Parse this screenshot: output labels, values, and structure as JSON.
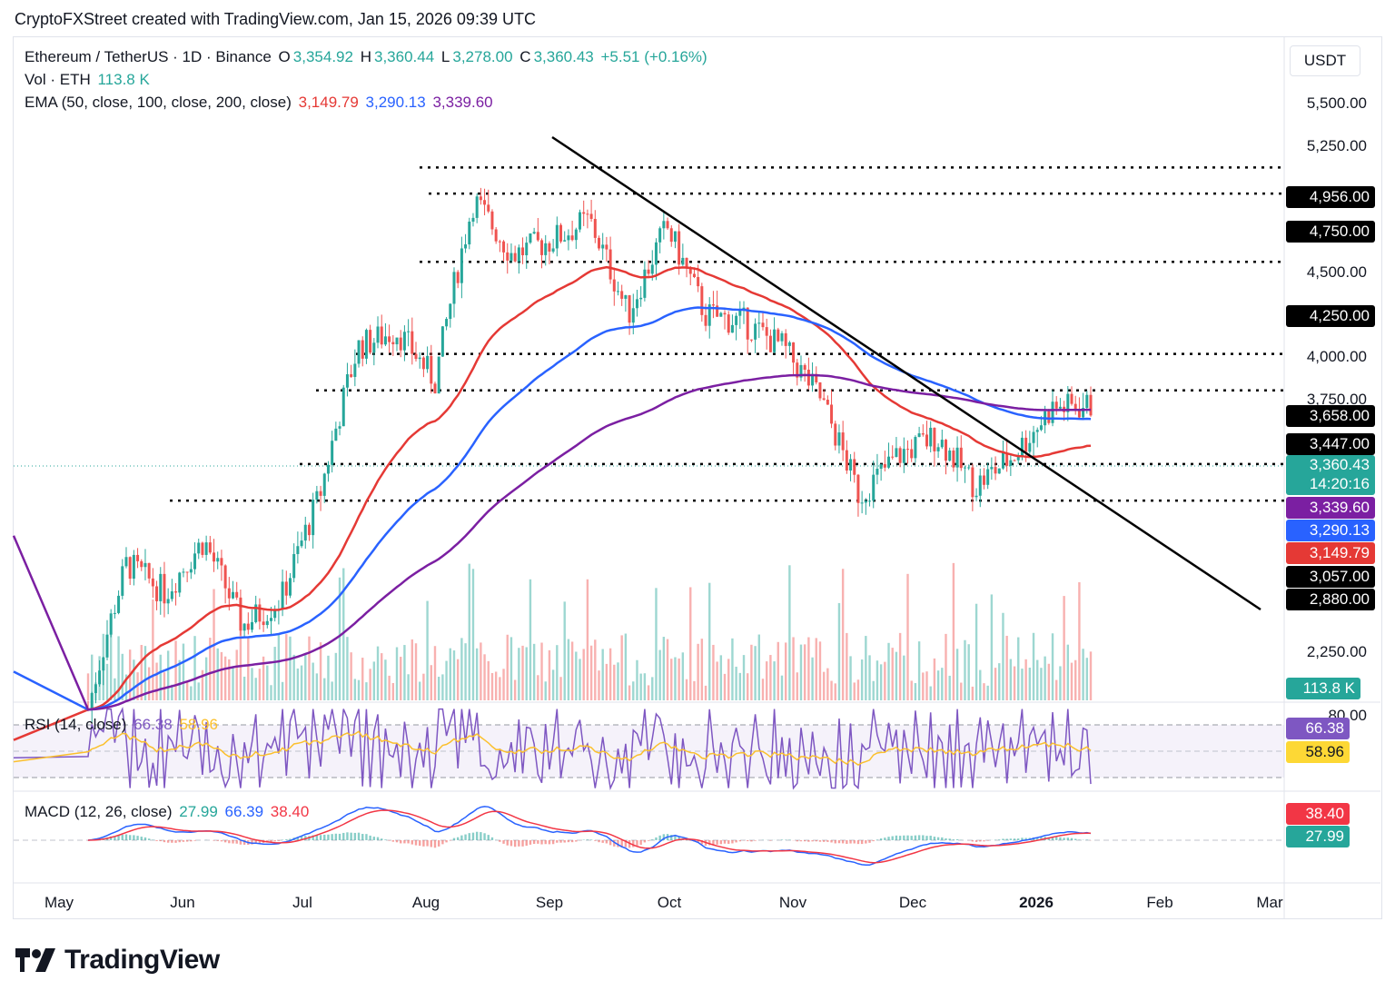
{
  "header": "CryptoFXStreet created with TradingView.com, Jan 15, 2026 09:39 UTC",
  "currency": "USDT",
  "legend": {
    "symbol": "Ethereum / TetherUS · 1D · Binance",
    "o_label": "O",
    "o": "3,354.92",
    "h_label": "H",
    "h": "3,360.44",
    "l_label": "L",
    "l": "3,278.00",
    "c_label": "C",
    "c": "3,360.43",
    "change": "+5.51 (+0.16%)",
    "vol_label": "Vol · ETH",
    "vol": "113.8 K",
    "ema_label": "EMA (50, close, 100, close, 200, close)",
    "ema50": "3,149.79",
    "ema100": "3,290.13",
    "ema200": "3,339.60",
    "rsi_label": "RSI (14, close)",
    "rsi": "66.38",
    "rsi_ma": "58.96",
    "macd_label": "MACD (12, 26, close)",
    "macd_hist": "27.99",
    "macd": "66.39",
    "macd_signal": "38.40"
  },
  "colors": {
    "up": "#26a69a",
    "down": "#ef5350",
    "ema50": "#e53935",
    "ema100": "#2962ff",
    "ema200": "#7b1fa2",
    "rsi": "#7e57c2",
    "rsi_ma": "#fbc02d",
    "macd": "#2962ff",
    "signal": "#f23645"
  },
  "price_axis": [
    "5,500.00",
    "5,250.00",
    "4,500.00",
    "4,000.00",
    "3,750.00",
    "2,250.00"
  ],
  "price_labels": {
    "last": "3,360.43",
    "countdown": "14:20:16",
    "ema200": "3,339.60",
    "ema100": "3,290.13",
    "ema50": "3,149.79",
    "vol": "113.8 K",
    "rsi": "66.38",
    "rsi_ma": "58.96",
    "macd_signal": "38.40",
    "macd_hist": "27.99"
  },
  "levels": [
    "4,956.00",
    "4,750.00",
    "4,250.00",
    "3,658.00",
    "3,447.00",
    "3,057.00",
    "2,880.00"
  ],
  "rsi_axis": [
    "80.00"
  ],
  "months": [
    "May",
    "Jun",
    "Jul",
    "Aug",
    "Sep",
    "Oct",
    "Nov",
    "Dec",
    "2026",
    "Feb",
    "Mar"
  ],
  "logo": "TradingView",
  "chart_data": {
    "type": "candlestick",
    "title": "Ethereum / TetherUS · 1D · Binance",
    "x_range": [
      "May",
      "Mar"
    ],
    "ylim": [
      2000,
      5700
    ],
    "y_scale": "log",
    "last_close": 3360.43,
    "horizontal_levels": [
      4956,
      4750,
      4250,
      3658,
      3447,
      3057,
      2880
    ],
    "trendline": {
      "from": [
        "Aug",
        5260
      ],
      "to": [
        "Mar",
        2720
      ]
    },
    "close_path": [
      {
        "x": "May",
        "y": 2050
      },
      {
        "x": "May",
        "y": 2600
      },
      {
        "x": "Jun",
        "y": 2480
      },
      {
        "x": "Jun",
        "y": 2700
      },
      {
        "x": "Jun",
        "y": 2350
      },
      {
        "x": "Jul",
        "y": 2450
      },
      {
        "x": "Jul",
        "y": 2900
      },
      {
        "x": "Jul",
        "y": 3700
      },
      {
        "x": "Aug",
        "y": 3800
      },
      {
        "x": "Aug",
        "y": 3500
      },
      {
        "x": "Aug",
        "y": 4700
      },
      {
        "x": "Sep",
        "y": 4300
      },
      {
        "x": "Sep",
        "y": 4400
      },
      {
        "x": "Sep",
        "y": 4550
      },
      {
        "x": "Sep",
        "y": 3900
      },
      {
        "x": "Oct",
        "y": 4500
      },
      {
        "x": "Oct",
        "y": 3900
      },
      {
        "x": "Oct",
        "y": 3850
      },
      {
        "x": "Nov",
        "y": 3700
      },
      {
        "x": "Nov",
        "y": 3400
      },
      {
        "x": "Nov",
        "y": 2900
      },
      {
        "x": "Dec",
        "y": 3100
      },
      {
        "x": "Dec",
        "y": 3200
      },
      {
        "x": "Dec",
        "y": 2950
      },
      {
        "x": "2026",
        "y": 3100
      },
      {
        "x": "2026",
        "y": 3350
      },
      {
        "x": "2026",
        "y": 3360.43
      }
    ],
    "series": [
      {
        "name": "EMA 50",
        "last": 3149.79
      },
      {
        "name": "EMA 100",
        "last": 3290.13
      },
      {
        "name": "EMA 200",
        "last": 3339.6
      }
    ],
    "rsi": {
      "value": 66.38,
      "ma": 58.96,
      "upper": 70,
      "lower": 30
    },
    "macd": {
      "macd": 66.39,
      "signal": 38.4,
      "histogram": 27.99
    },
    "volume_last": "113.8 K"
  }
}
